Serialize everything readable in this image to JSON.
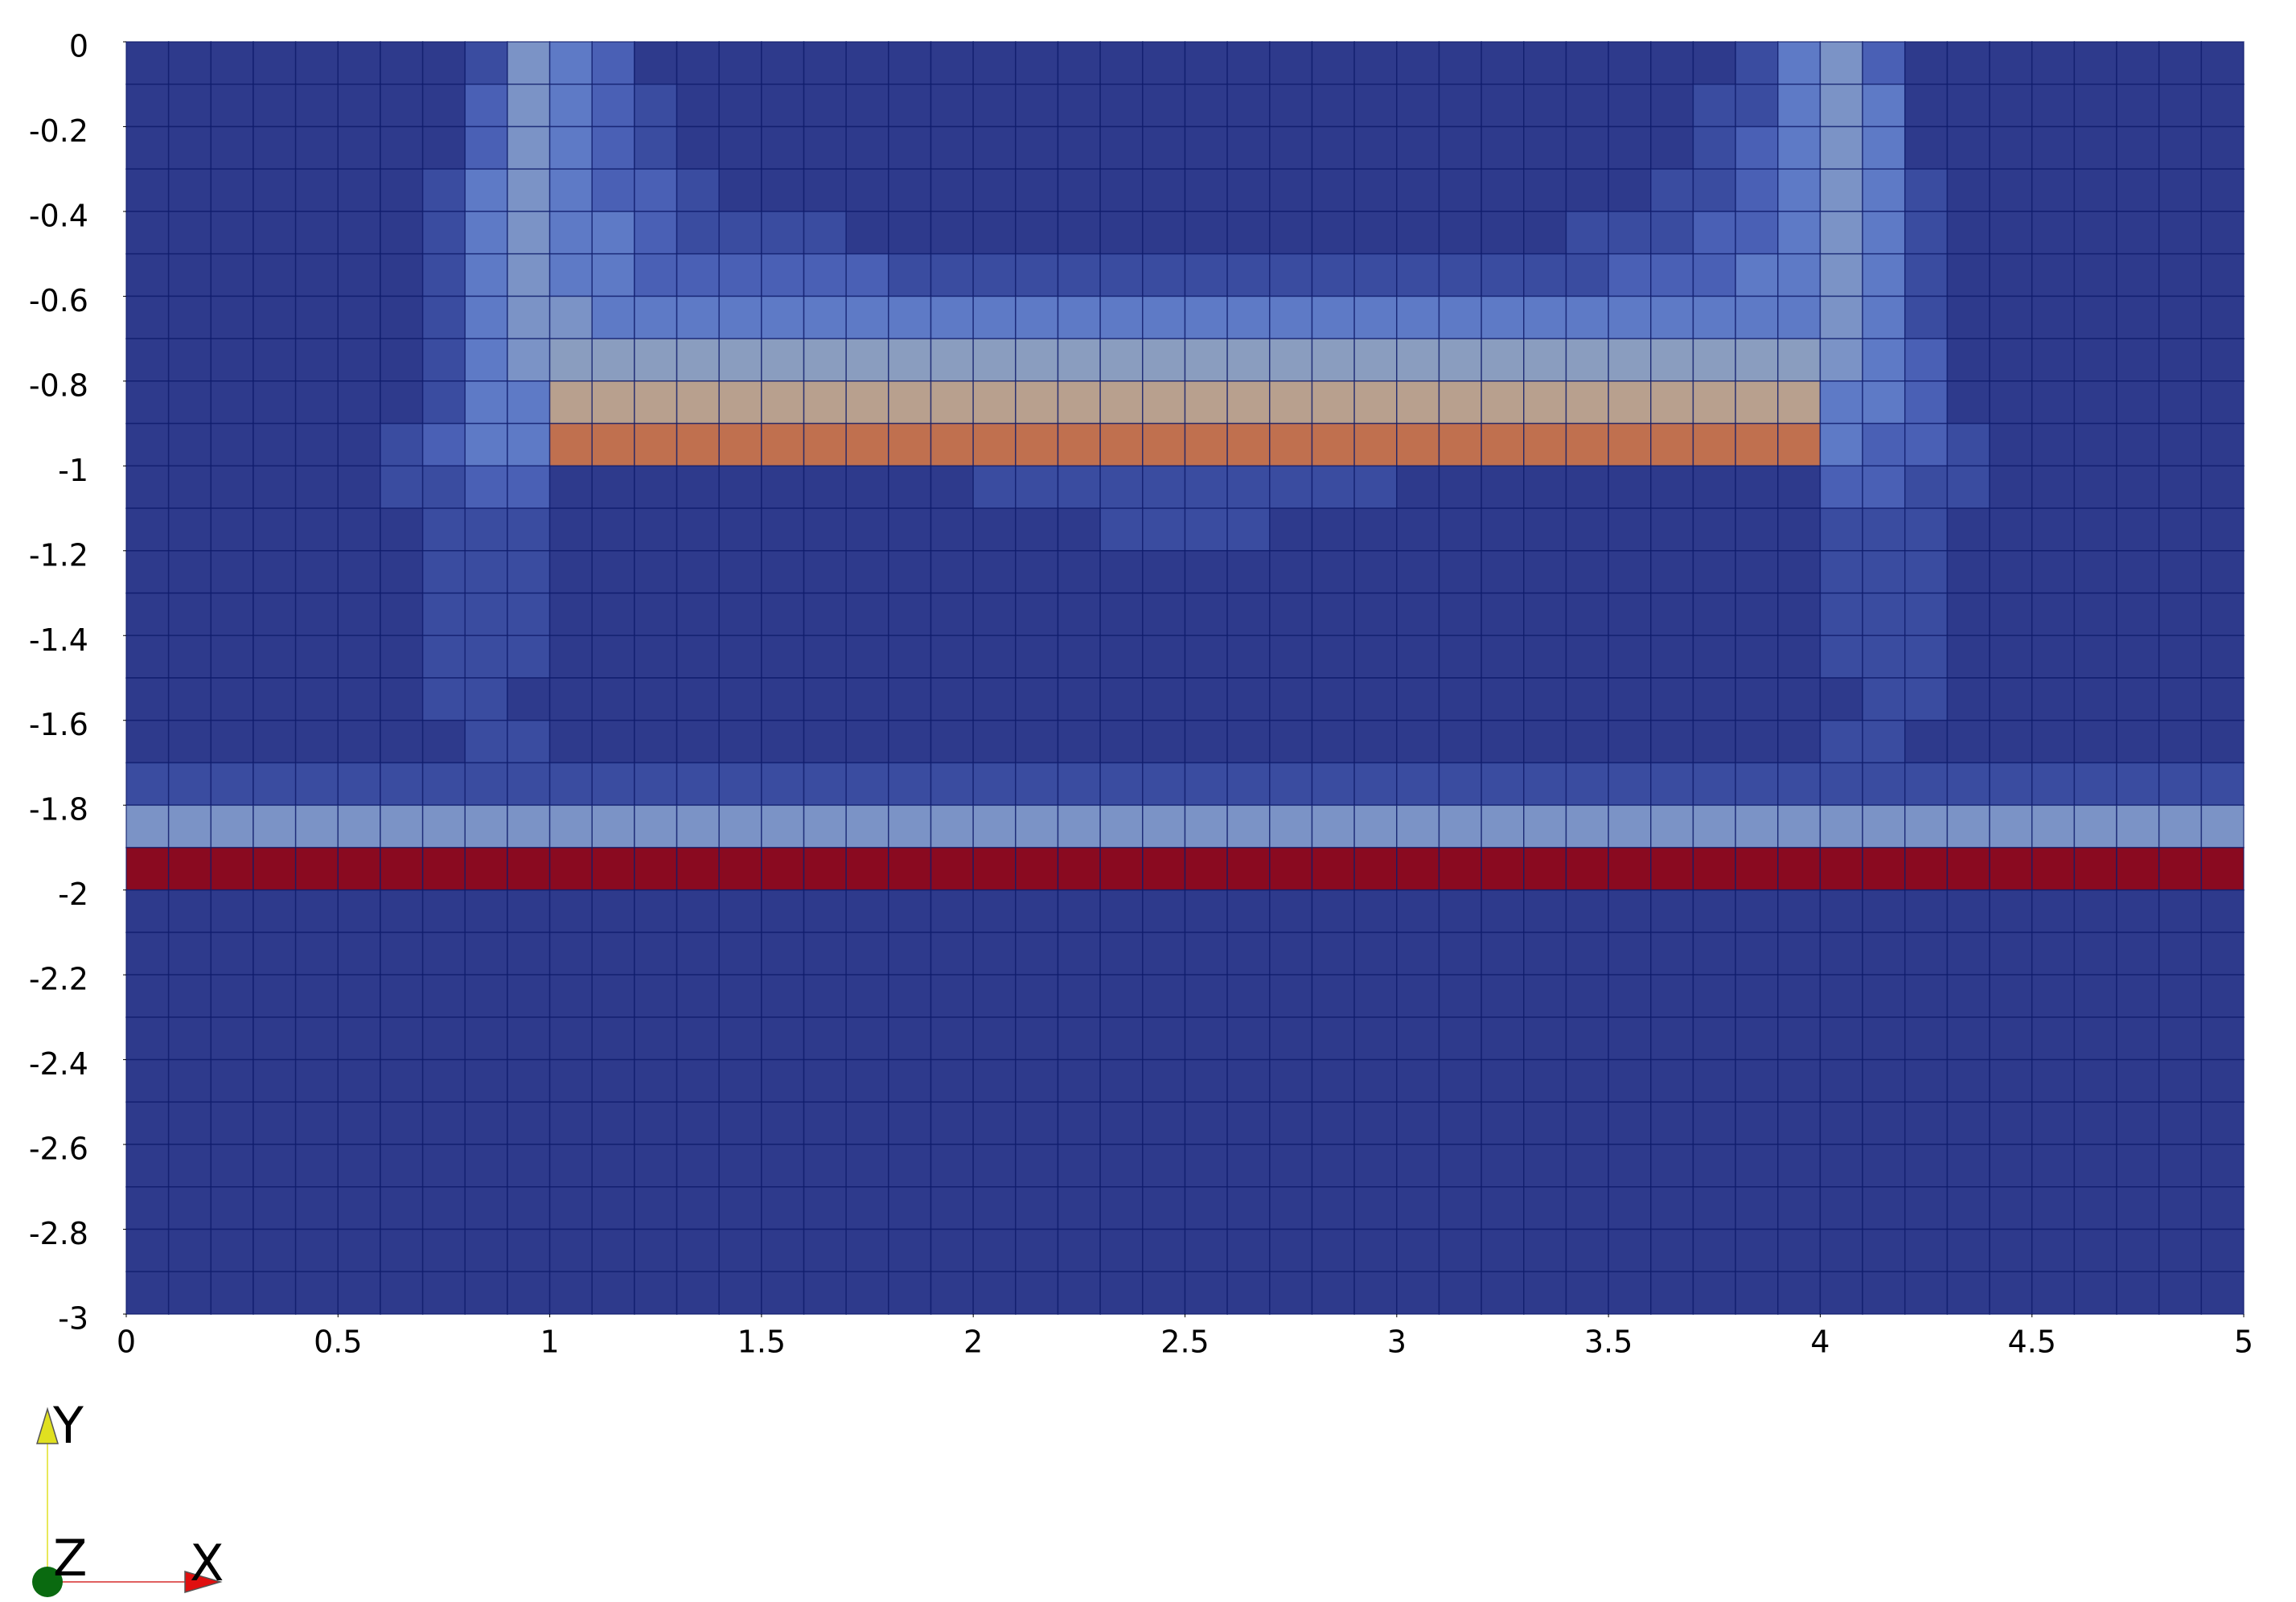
{
  "chart_data": {
    "type": "heatmap",
    "xlim": [
      0,
      5
    ],
    "ylim": [
      -3,
      0
    ],
    "xticks": [
      0,
      0.5,
      1,
      1.5,
      2,
      2.5,
      3,
      3.5,
      4,
      4.5,
      5
    ],
    "yticks": [
      0,
      -0.2,
      -0.4,
      -0.6,
      -0.8,
      -1,
      -1.2,
      -1.4,
      -1.6,
      -1.8,
      -2,
      -2.2,
      -2.4,
      -2.6,
      -2.8,
      -3
    ],
    "colors": [
      "#2e3a8c",
      "#3a4ca0",
      "#4a60b5",
      "#5e7ac6",
      "#7b93c6",
      "#8a9dbf",
      "#b8a08e",
      "#c0704f",
      "#8a0a20"
    ],
    "values": [
      [
        0,
        0,
        0,
        0,
        0,
        0,
        0,
        0,
        1,
        4,
        3,
        2,
        0,
        0,
        0,
        0,
        0,
        0,
        0,
        0,
        0,
        0,
        0,
        0,
        0,
        0,
        0,
        0,
        0,
        0,
        0,
        0,
        0,
        0,
        0,
        0,
        0,
        0,
        1,
        3,
        4,
        2,
        0,
        0,
        0,
        0,
        0,
        0,
        0,
        0
      ],
      [
        0,
        0,
        0,
        0,
        0,
        0,
        0,
        0,
        2,
        4,
        3,
        2,
        1,
        0,
        0,
        0,
        0,
        0,
        0,
        0,
        0,
        0,
        0,
        0,
        0,
        0,
        0,
        0,
        0,
        0,
        0,
        0,
        0,
        0,
        0,
        0,
        0,
        1,
        1,
        3,
        4,
        3,
        0,
        0,
        0,
        0,
        0,
        0,
        0,
        0
      ],
      [
        0,
        0,
        0,
        0,
        0,
        0,
        0,
        0,
        2,
        4,
        3,
        2,
        1,
        0,
        0,
        0,
        0,
        0,
        0,
        0,
        0,
        0,
        0,
        0,
        0,
        0,
        0,
        0,
        0,
        0,
        0,
        0,
        0,
        0,
        0,
        0,
        0,
        1,
        2,
        3,
        4,
        3,
        0,
        0,
        0,
        0,
        0,
        0,
        0,
        0
      ],
      [
        0,
        0,
        0,
        0,
        0,
        0,
        0,
        1,
        3,
        4,
        3,
        2,
        2,
        1,
        0,
        0,
        0,
        0,
        0,
        0,
        0,
        0,
        0,
        0,
        0,
        0,
        0,
        0,
        0,
        0,
        0,
        0,
        0,
        0,
        0,
        0,
        1,
        1,
        2,
        3,
        4,
        3,
        1,
        0,
        0,
        0,
        0,
        0,
        0,
        0
      ],
      [
        0,
        0,
        0,
        0,
        0,
        0,
        0,
        1,
        3,
        4,
        3,
        3,
        2,
        1,
        1,
        1,
        1,
        0,
        0,
        0,
        0,
        0,
        0,
        0,
        0,
        0,
        0,
        0,
        0,
        0,
        0,
        0,
        0,
        0,
        1,
        1,
        1,
        2,
        2,
        3,
        4,
        3,
        1,
        0,
        0,
        0,
        0,
        0,
        0,
        0
      ],
      [
        0,
        0,
        0,
        0,
        0,
        0,
        0,
        1,
        3,
        4,
        3,
        3,
        2,
        2,
        2,
        2,
        2,
        2,
        1,
        1,
        1,
        1,
        1,
        1,
        1,
        1,
        1,
        1,
        1,
        1,
        1,
        1,
        1,
        1,
        1,
        2,
        2,
        2,
        3,
        3,
        4,
        3,
        1,
        0,
        0,
        0,
        0,
        0,
        0,
        0
      ],
      [
        0,
        0,
        0,
        0,
        0,
        0,
        0,
        1,
        3,
        4,
        4,
        3,
        3,
        3,
        3,
        3,
        3,
        3,
        3,
        3,
        3,
        3,
        3,
        3,
        3,
        3,
        3,
        3,
        3,
        3,
        3,
        3,
        3,
        3,
        3,
        3,
        3,
        3,
        3,
        3,
        4,
        3,
        1,
        0,
        0,
        0,
        0,
        0,
        0,
        0
      ],
      [
        0,
        0,
        0,
        0,
        0,
        0,
        0,
        1,
        3,
        4,
        5,
        5,
        5,
        5,
        5,
        5,
        5,
        5,
        5,
        5,
        5,
        5,
        5,
        5,
        5,
        5,
        5,
        5,
        5,
        5,
        5,
        5,
        5,
        5,
        5,
        5,
        5,
        5,
        5,
        5,
        4,
        3,
        2,
        0,
        0,
        0,
        0,
        0,
        0,
        0
      ],
      [
        0,
        0,
        0,
        0,
        0,
        0,
        0,
        1,
        3,
        3,
        6,
        6,
        6,
        6,
        6,
        6,
        6,
        6,
        6,
        6,
        6,
        6,
        6,
        6,
        6,
        6,
        6,
        6,
        6,
        6,
        6,
        6,
        6,
        6,
        6,
        6,
        6,
        6,
        6,
        6,
        3,
        3,
        2,
        0,
        0,
        0,
        0,
        0,
        0,
        0
      ],
      [
        0,
        0,
        0,
        0,
        0,
        0,
        1,
        2,
        3,
        3,
        7,
        7,
        7,
        7,
        7,
        7,
        7,
        7,
        7,
        7,
        7,
        7,
        7,
        7,
        7,
        7,
        7,
        7,
        7,
        7,
        7,
        7,
        7,
        7,
        7,
        7,
        7,
        7,
        7,
        7,
        3,
        2,
        2,
        1,
        0,
        0,
        0,
        0,
        0,
        0
      ],
      [
        0,
        0,
        0,
        0,
        0,
        0,
        1,
        1,
        2,
        2,
        0,
        0,
        0,
        0,
        0,
        0,
        0,
        0,
        0,
        0,
        1,
        1,
        1,
        1,
        1,
        1,
        1,
        1,
        1,
        1,
        0,
        0,
        0,
        0,
        0,
        0,
        0,
        0,
        0,
        0,
        2,
        2,
        1,
        1,
        0,
        0,
        0,
        0,
        0,
        0
      ],
      [
        0,
        0,
        0,
        0,
        0,
        0,
        0,
        1,
        1,
        1,
        0,
        0,
        0,
        0,
        0,
        0,
        0,
        0,
        0,
        0,
        0,
        0,
        0,
        1,
        1,
        1,
        1,
        0,
        0,
        0,
        0,
        0,
        0,
        0,
        0,
        0,
        0,
        0,
        0,
        0,
        1,
        1,
        1,
        0,
        0,
        0,
        0,
        0,
        0,
        0
      ],
      [
        0,
        0,
        0,
        0,
        0,
        0,
        0,
        1,
        1,
        1,
        0,
        0,
        0,
        0,
        0,
        0,
        0,
        0,
        0,
        0,
        0,
        0,
        0,
        0,
        0,
        0,
        0,
        0,
        0,
        0,
        0,
        0,
        0,
        0,
        0,
        0,
        0,
        0,
        0,
        0,
        1,
        1,
        1,
        0,
        0,
        0,
        0,
        0,
        0,
        0
      ],
      [
        0,
        0,
        0,
        0,
        0,
        0,
        0,
        1,
        1,
        1,
        0,
        0,
        0,
        0,
        0,
        0,
        0,
        0,
        0,
        0,
        0,
        0,
        0,
        0,
        0,
        0,
        0,
        0,
        0,
        0,
        0,
        0,
        0,
        0,
        0,
        0,
        0,
        0,
        0,
        0,
        1,
        1,
        1,
        0,
        0,
        0,
        0,
        0,
        0,
        0
      ],
      [
        0,
        0,
        0,
        0,
        0,
        0,
        0,
        1,
        1,
        1,
        0,
        0,
        0,
        0,
        0,
        0,
        0,
        0,
        0,
        0,
        0,
        0,
        0,
        0,
        0,
        0,
        0,
        0,
        0,
        0,
        0,
        0,
        0,
        0,
        0,
        0,
        0,
        0,
        0,
        0,
        1,
        1,
        1,
        0,
        0,
        0,
        0,
        0,
        0,
        0
      ],
      [
        0,
        0,
        0,
        0,
        0,
        0,
        0,
        1,
        1,
        0,
        0,
        0,
        0,
        0,
        0,
        0,
        0,
        0,
        0,
        0,
        0,
        0,
        0,
        0,
        0,
        0,
        0,
        0,
        0,
        0,
        0,
        0,
        0,
        0,
        0,
        0,
        0,
        0,
        0,
        0,
        0,
        1,
        1,
        0,
        0,
        0,
        0,
        0,
        0,
        0
      ],
      [
        0,
        0,
        0,
        0,
        0,
        0,
        0,
        0,
        1,
        1,
        0,
        0,
        0,
        0,
        0,
        0,
        0,
        0,
        0,
        0,
        0,
        0,
        0,
        0,
        0,
        0,
        0,
        0,
        0,
        0,
        0,
        0,
        0,
        0,
        0,
        0,
        0,
        0,
        0,
        0,
        1,
        1,
        0,
        0,
        0,
        0,
        0,
        0,
        0,
        0
      ],
      [
        1,
        1,
        1,
        1,
        1,
        1,
        1,
        1,
        1,
        1,
        1,
        1,
        1,
        1,
        1,
        1,
        1,
        1,
        1,
        1,
        1,
        1,
        1,
        1,
        1,
        1,
        1,
        1,
        1,
        1,
        1,
        1,
        1,
        1,
        1,
        1,
        1,
        1,
        1,
        1,
        1,
        1,
        1,
        1,
        1,
        1,
        1,
        1,
        1,
        1
      ],
      [
        4,
        4,
        4,
        4,
        4,
        4,
        4,
        4,
        4,
        4,
        4,
        4,
        4,
        4,
        4,
        4,
        4,
        4,
        4,
        4,
        4,
        4,
        4,
        4,
        4,
        4,
        4,
        4,
        4,
        4,
        4,
        4,
        4,
        4,
        4,
        4,
        4,
        4,
        4,
        4,
        4,
        4,
        4,
        4,
        4,
        4,
        4,
        4,
        4,
        4
      ],
      [
        8,
        8,
        8,
        8,
        8,
        8,
        8,
        8,
        8,
        8,
        8,
        8,
        8,
        8,
        8,
        8,
        8,
        8,
        8,
        8,
        8,
        8,
        8,
        8,
        8,
        8,
        8,
        8,
        8,
        8,
        8,
        8,
        8,
        8,
        8,
        8,
        8,
        8,
        8,
        8,
        8,
        8,
        8,
        8,
        8,
        8,
        8,
        8,
        8,
        8
      ],
      [
        0,
        0,
        0,
        0,
        0,
        0,
        0,
        0,
        0,
        0,
        0,
        0,
        0,
        0,
        0,
        0,
        0,
        0,
        0,
        0,
        0,
        0,
        0,
        0,
        0,
        0,
        0,
        0,
        0,
        0,
        0,
        0,
        0,
        0,
        0,
        0,
        0,
        0,
        0,
        0,
        0,
        0,
        0,
        0,
        0,
        0,
        0,
        0,
        0,
        0
      ],
      [
        0,
        0,
        0,
        0,
        0,
        0,
        0,
        0,
        0,
        0,
        0,
        0,
        0,
        0,
        0,
        0,
        0,
        0,
        0,
        0,
        0,
        0,
        0,
        0,
        0,
        0,
        0,
        0,
        0,
        0,
        0,
        0,
        0,
        0,
        0,
        0,
        0,
        0,
        0,
        0,
        0,
        0,
        0,
        0,
        0,
        0,
        0,
        0,
        0,
        0
      ],
      [
        0,
        0,
        0,
        0,
        0,
        0,
        0,
        0,
        0,
        0,
        0,
        0,
        0,
        0,
        0,
        0,
        0,
        0,
        0,
        0,
        0,
        0,
        0,
        0,
        0,
        0,
        0,
        0,
        0,
        0,
        0,
        0,
        0,
        0,
        0,
        0,
        0,
        0,
        0,
        0,
        0,
        0,
        0,
        0,
        0,
        0,
        0,
        0,
        0,
        0
      ],
      [
        0,
        0,
        0,
        0,
        0,
        0,
        0,
        0,
        0,
        0,
        0,
        0,
        0,
        0,
        0,
        0,
        0,
        0,
        0,
        0,
        0,
        0,
        0,
        0,
        0,
        0,
        0,
        0,
        0,
        0,
        0,
        0,
        0,
        0,
        0,
        0,
        0,
        0,
        0,
        0,
        0,
        0,
        0,
        0,
        0,
        0,
        0,
        0,
        0,
        0
      ],
      [
        0,
        0,
        0,
        0,
        0,
        0,
        0,
        0,
        0,
        0,
        0,
        0,
        0,
        0,
        0,
        0,
        0,
        0,
        0,
        0,
        0,
        0,
        0,
        0,
        0,
        0,
        0,
        0,
        0,
        0,
        0,
        0,
        0,
        0,
        0,
        0,
        0,
        0,
        0,
        0,
        0,
        0,
        0,
        0,
        0,
        0,
        0,
        0,
        0,
        0
      ],
      [
        0,
        0,
        0,
        0,
        0,
        0,
        0,
        0,
        0,
        0,
        0,
        0,
        0,
        0,
        0,
        0,
        0,
        0,
        0,
        0,
        0,
        0,
        0,
        0,
        0,
        0,
        0,
        0,
        0,
        0,
        0,
        0,
        0,
        0,
        0,
        0,
        0,
        0,
        0,
        0,
        0,
        0,
        0,
        0,
        0,
        0,
        0,
        0,
        0,
        0
      ],
      [
        0,
        0,
        0,
        0,
        0,
        0,
        0,
        0,
        0,
        0,
        0,
        0,
        0,
        0,
        0,
        0,
        0,
        0,
        0,
        0,
        0,
        0,
        0,
        0,
        0,
        0,
        0,
        0,
        0,
        0,
        0,
        0,
        0,
        0,
        0,
        0,
        0,
        0,
        0,
        0,
        0,
        0,
        0,
        0,
        0,
        0,
        0,
        0,
        0,
        0
      ],
      [
        0,
        0,
        0,
        0,
        0,
        0,
        0,
        0,
        0,
        0,
        0,
        0,
        0,
        0,
        0,
        0,
        0,
        0,
        0,
        0,
        0,
        0,
        0,
        0,
        0,
        0,
        0,
        0,
        0,
        0,
        0,
        0,
        0,
        0,
        0,
        0,
        0,
        0,
        0,
        0,
        0,
        0,
        0,
        0,
        0,
        0,
        0,
        0,
        0,
        0
      ],
      [
        0,
        0,
        0,
        0,
        0,
        0,
        0,
        0,
        0,
        0,
        0,
        0,
        0,
        0,
        0,
        0,
        0,
        0,
        0,
        0,
        0,
        0,
        0,
        0,
        0,
        0,
        0,
        0,
        0,
        0,
        0,
        0,
        0,
        0,
        0,
        0,
        0,
        0,
        0,
        0,
        0,
        0,
        0,
        0,
        0,
        0,
        0,
        0,
        0,
        0
      ],
      [
        0,
        0,
        0,
        0,
        0,
        0,
        0,
        0,
        0,
        0,
        0,
        0,
        0,
        0,
        0,
        0,
        0,
        0,
        0,
        0,
        0,
        0,
        0,
        0,
        0,
        0,
        0,
        0,
        0,
        0,
        0,
        0,
        0,
        0,
        0,
        0,
        0,
        0,
        0,
        0,
        0,
        0,
        0,
        0,
        0,
        0,
        0,
        0,
        0,
        0
      ]
    ],
    "axes_triad": {
      "y": "Y",
      "z": "Z",
      "x": "X"
    }
  }
}
